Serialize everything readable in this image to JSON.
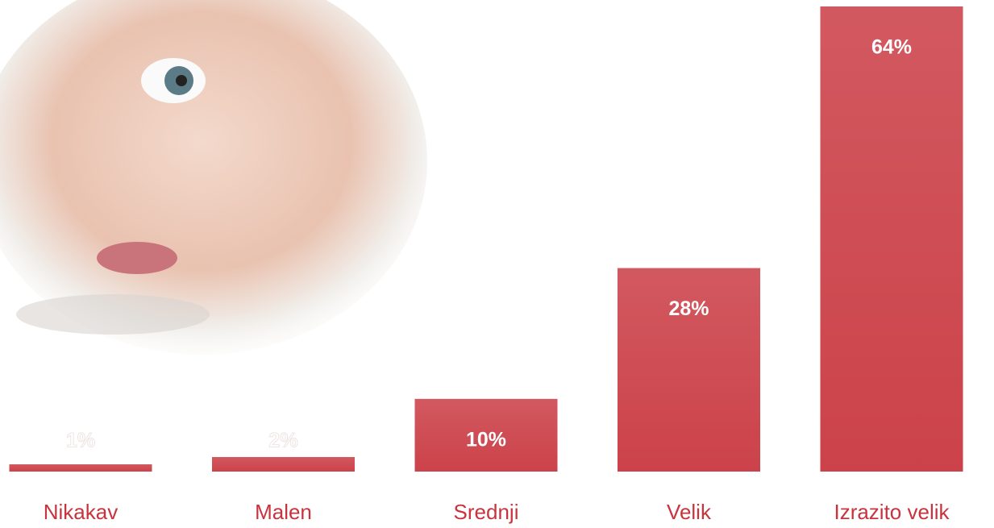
{
  "chart_data": {
    "type": "bar",
    "categories": [
      "Nikakav",
      "Malen",
      "Srednji",
      "Velik",
      "Izrazito velik"
    ],
    "values": [
      1,
      2,
      10,
      28,
      64
    ],
    "value_labels": [
      "1%",
      "2%",
      "10%",
      "28%",
      "64%"
    ],
    "color": "#cc424a",
    "label_color": "#c8343e"
  }
}
